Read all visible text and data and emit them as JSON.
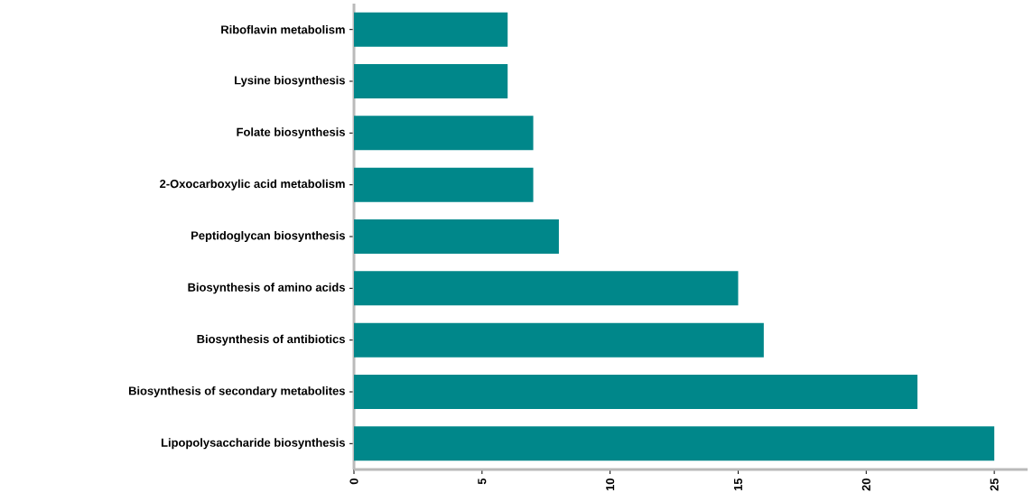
{
  "chart_data": {
    "type": "bar",
    "orientation": "horizontal",
    "categories": [
      "Riboflavin metabolism",
      "Lysine biosynthesis",
      "Folate biosynthesis",
      "2-Oxocarboxylic acid metabolism",
      "Peptidoglycan biosynthesis",
      "Biosynthesis of amino acids",
      "Biosynthesis of antibiotics",
      "Biosynthesis of secondary metabolites",
      "Lipopolysaccharide biosynthesis"
    ],
    "values": [
      6,
      6,
      7,
      7,
      8,
      15,
      16,
      22,
      25
    ],
    "color": "#00878a",
    "xlim": [
      0,
      26.3
    ],
    "xticks": [
      0,
      5,
      10,
      15,
      20,
      25
    ]
  }
}
